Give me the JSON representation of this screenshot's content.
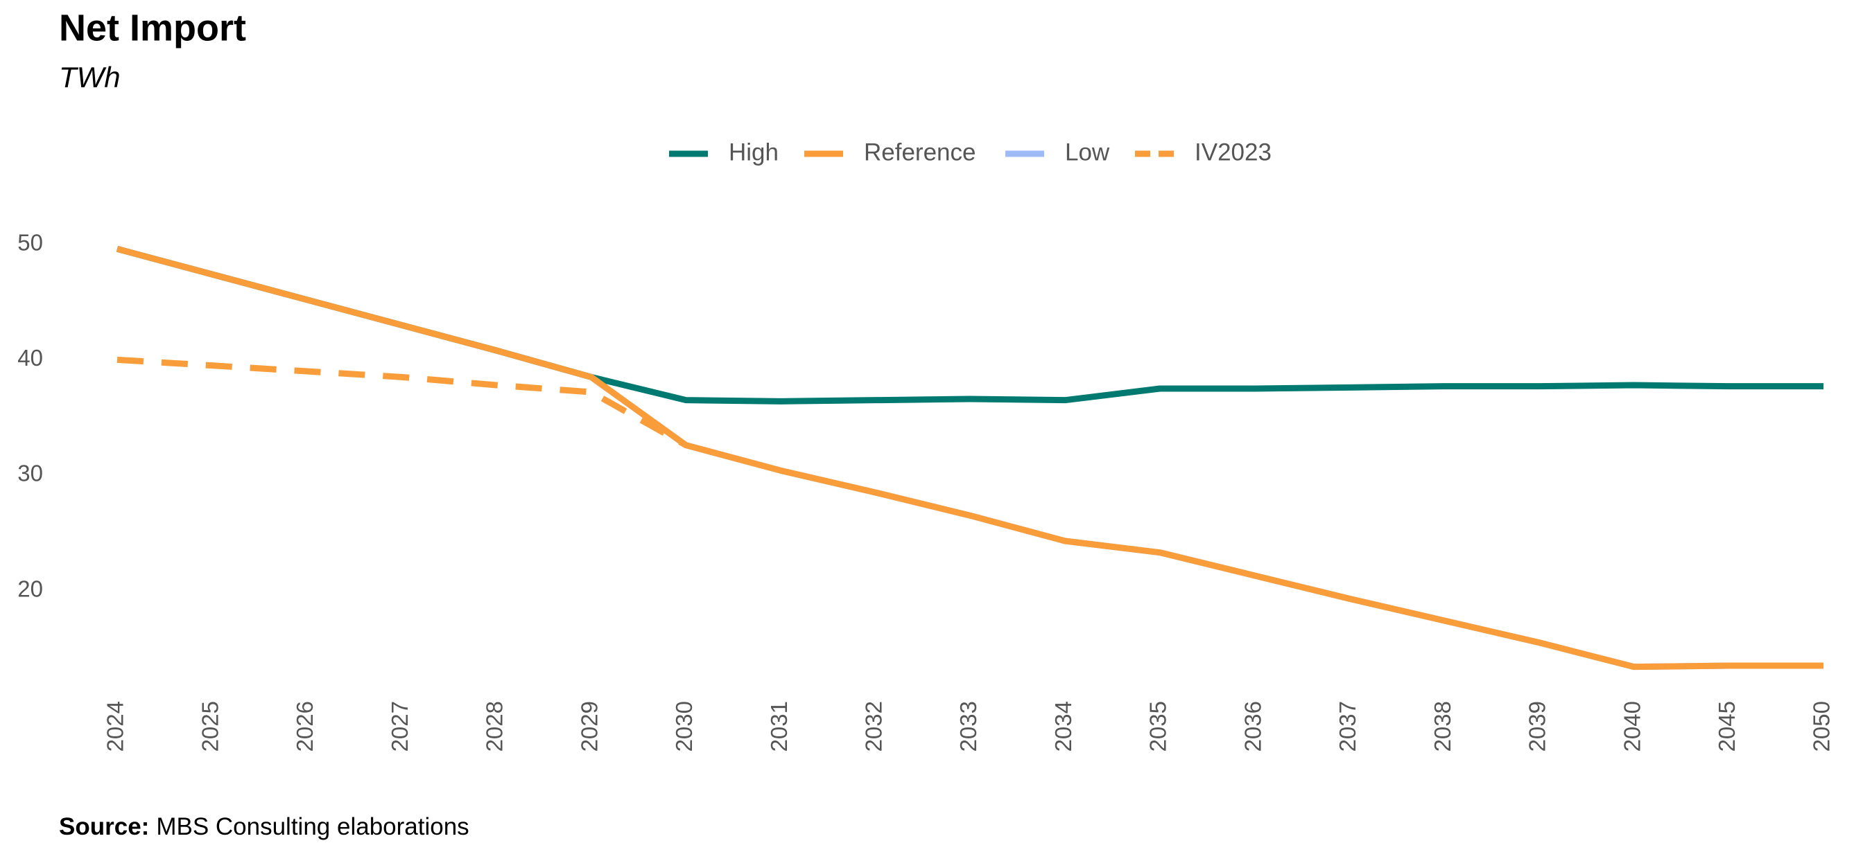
{
  "chart_data": {
    "type": "line",
    "title": "Net Import",
    "subtitle": "TWh",
    "source_label": "Source:",
    "source": "MBS Consulting elaborations",
    "categories": [
      "2024",
      "2025",
      "2026",
      "2027",
      "2028",
      "2029",
      "2030",
      "2031",
      "2032",
      "2033",
      "2034",
      "2035",
      "2036",
      "2037",
      "2038",
      "2039",
      "2040",
      "2045",
      "2050"
    ],
    "series": [
      {
        "name": "High",
        "color": "#007a70",
        "dash": false,
        "values": [
          49.6,
          47.4,
          45.2,
          43.0,
          40.8,
          38.5,
          36.5,
          36.4,
          36.5,
          36.6,
          36.5,
          37.5,
          37.5,
          37.6,
          37.7,
          37.7,
          37.8,
          37.7,
          37.7
        ]
      },
      {
        "name": "Reference",
        "color": "#f99d3a",
        "dash": false,
        "values": [
          49.6,
          47.4,
          45.2,
          43.0,
          40.8,
          38.5,
          32.6,
          30.4,
          28.5,
          26.5,
          24.3,
          23.3,
          21.3,
          19.3,
          17.4,
          15.5,
          13.4,
          13.5,
          13.5
        ]
      },
      {
        "name": "Low",
        "color": "#9ebbf7",
        "dash": false,
        "values": [
          49.6,
          47.4,
          45.2,
          43.0,
          40.8,
          38.5,
          32.6,
          30.4,
          28.5,
          26.5,
          24.3,
          23.3,
          21.3,
          19.3,
          17.4,
          15.5,
          13.4,
          13.5,
          13.5
        ]
      },
      {
        "name": "IV2023",
        "color": "#f99d3a",
        "dash": true,
        "values": [
          40.0,
          39.5,
          39.0,
          38.5,
          37.8,
          37.2,
          32.6,
          null,
          null,
          null,
          null,
          null,
          null,
          null,
          null,
          null,
          null,
          null,
          null
        ]
      }
    ],
    "ylim": [
      12,
      51
    ],
    "yticks": [
      20,
      30,
      40,
      50
    ],
    "grid": false,
    "legend": "top"
  }
}
